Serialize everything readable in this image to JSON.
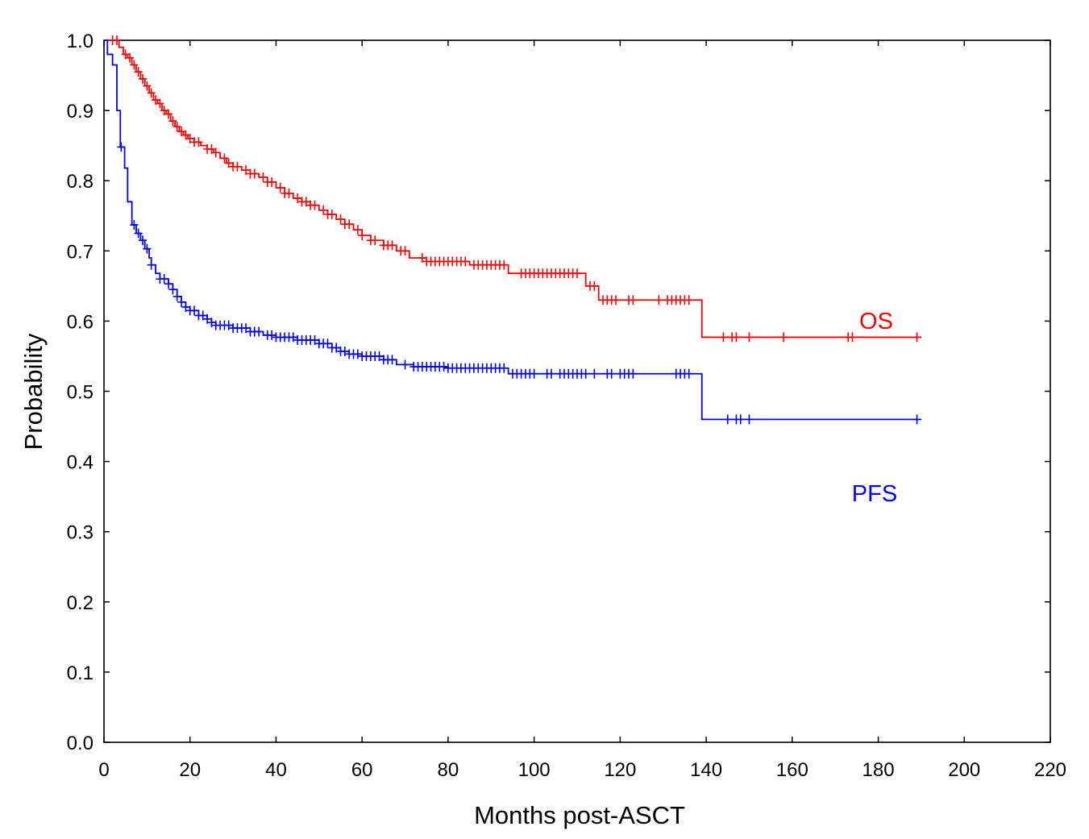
{
  "chart_data": {
    "type": "line",
    "subtype": "kaplan-meier step",
    "title": "",
    "xlabel": "Months post-ASCT",
    "ylabel": "Probability",
    "xlim": [
      0,
      220
    ],
    "ylim": [
      0,
      1.0
    ],
    "x_ticks": [
      0,
      20,
      40,
      60,
      80,
      100,
      120,
      140,
      160,
      180,
      200,
      220
    ],
    "y_ticks": [
      0.0,
      0.1,
      0.2,
      0.3,
      0.4,
      0.5,
      0.6,
      0.7,
      0.8,
      0.9,
      1.0
    ],
    "x_tick_labels": [
      "0",
      "20",
      "40",
      "60",
      "80",
      "100",
      "120",
      "140",
      "160",
      "180",
      "200",
      "220"
    ],
    "y_tick_labels": [
      "0.0",
      "0.1",
      "0.2",
      "0.3",
      "0.4",
      "0.5",
      "0.6",
      "0.7",
      "0.8",
      "0.9",
      "1.0"
    ],
    "grid": false,
    "series": [
      {
        "name": "OS",
        "color": "#ff0000",
        "points": [
          [
            0,
            1.0
          ],
          [
            3.5,
            0.99
          ],
          [
            4.5,
            0.98
          ],
          [
            5.5,
            0.975
          ],
          [
            6.5,
            0.965
          ],
          [
            7.5,
            0.955
          ],
          [
            8.5,
            0.945
          ],
          [
            9.5,
            0.935
          ],
          [
            10.5,
            0.925
          ],
          [
            11.5,
            0.915
          ],
          [
            12.5,
            0.91
          ],
          [
            13.5,
            0.9
          ],
          [
            14.5,
            0.895
          ],
          [
            15.5,
            0.885
          ],
          [
            16.5,
            0.877
          ],
          [
            17.5,
            0.87
          ],
          [
            18.5,
            0.865
          ],
          [
            19.5,
            0.86
          ],
          [
            21,
            0.855
          ],
          [
            22.5,
            0.85
          ],
          [
            24,
            0.845
          ],
          [
            25.5,
            0.84
          ],
          [
            27,
            0.832
          ],
          [
            28.5,
            0.825
          ],
          [
            30,
            0.82
          ],
          [
            32,
            0.815
          ],
          [
            34,
            0.81
          ],
          [
            36,
            0.805
          ],
          [
            38,
            0.798
          ],
          [
            40,
            0.79
          ],
          [
            42,
            0.782
          ],
          [
            44,
            0.775
          ],
          [
            46,
            0.77
          ],
          [
            48,
            0.765
          ],
          [
            50,
            0.758
          ],
          [
            52,
            0.752
          ],
          [
            54,
            0.745
          ],
          [
            56,
            0.738
          ],
          [
            58,
            0.73
          ],
          [
            60,
            0.722
          ],
          [
            62,
            0.715
          ],
          [
            65,
            0.708
          ],
          [
            68,
            0.7
          ],
          [
            71,
            0.69
          ],
          [
            75,
            0.685
          ],
          [
            85,
            0.68
          ],
          [
            94,
            0.668
          ],
          [
            112,
            0.65
          ],
          [
            115,
            0.63
          ],
          [
            139,
            0.577
          ],
          [
            190,
            0.577
          ]
        ],
        "censor_x": [
          2,
          3,
          5,
          6,
          7,
          8,
          9,
          10,
          11,
          12,
          13,
          14,
          15,
          16,
          17,
          18,
          19,
          20,
          21,
          22,
          24,
          25,
          26,
          28,
          29,
          30,
          31,
          33,
          34,
          35,
          37,
          38,
          39,
          41,
          42,
          43,
          45,
          46,
          47,
          48,
          49,
          51,
          52,
          53,
          55,
          56,
          57,
          59,
          60,
          62,
          63,
          65,
          66,
          67,
          69,
          70,
          74,
          75,
          76,
          77,
          78,
          79,
          80,
          81,
          82,
          83,
          84,
          86,
          87,
          88,
          89,
          90,
          91,
          92,
          93,
          97,
          98,
          99,
          100,
          101,
          102,
          103,
          104,
          105,
          106,
          107,
          108,
          109,
          110,
          113,
          114,
          116,
          117,
          118,
          119,
          122,
          123,
          129,
          131,
          132,
          133,
          134,
          135,
          136,
          144,
          146,
          147,
          150,
          158,
          173,
          174,
          189
        ],
        "label": "OS"
      },
      {
        "name": "PFS",
        "color": "#0000ff",
        "points": [
          [
            0,
            1.0
          ],
          [
            0.8,
            0.98
          ],
          [
            2,
            0.965
          ],
          [
            3,
            0.9
          ],
          [
            3.8,
            0.848
          ],
          [
            4.8,
            0.818
          ],
          [
            5.5,
            0.77
          ],
          [
            6.5,
            0.737
          ],
          [
            7.5,
            0.725
          ],
          [
            8.5,
            0.715
          ],
          [
            9.5,
            0.703
          ],
          [
            10.5,
            0.69
          ],
          [
            11,
            0.68
          ],
          [
            12,
            0.668
          ],
          [
            13,
            0.66
          ],
          [
            15,
            0.653
          ],
          [
            16,
            0.645
          ],
          [
            17,
            0.635
          ],
          [
            18,
            0.627
          ],
          [
            19,
            0.62
          ],
          [
            20,
            0.615
          ],
          [
            22,
            0.608
          ],
          [
            24,
            0.603
          ],
          [
            25,
            0.598
          ],
          [
            26,
            0.594
          ],
          [
            30,
            0.59
          ],
          [
            34,
            0.585
          ],
          [
            37,
            0.58
          ],
          [
            40,
            0.577
          ],
          [
            45,
            0.573
          ],
          [
            50,
            0.568
          ],
          [
            53,
            0.562
          ],
          [
            55,
            0.557
          ],
          [
            57,
            0.553
          ],
          [
            60,
            0.55
          ],
          [
            65,
            0.545
          ],
          [
            68,
            0.538
          ],
          [
            72,
            0.535
          ],
          [
            80,
            0.533
          ],
          [
            94,
            0.525
          ],
          [
            139,
            0.46
          ],
          [
            190,
            0.46
          ]
        ],
        "censor_x": [
          4,
          7,
          8,
          9,
          10,
          11,
          13,
          14,
          15,
          16,
          17,
          18,
          19,
          20,
          21,
          22,
          23,
          24,
          25,
          26,
          27,
          28,
          29,
          30,
          31,
          32,
          33,
          34,
          35,
          36,
          38,
          39,
          40,
          41,
          42,
          43,
          44,
          45,
          46,
          47,
          48,
          49,
          50,
          51,
          52,
          53,
          54,
          55,
          56,
          57,
          58,
          59,
          60,
          61,
          62,
          63,
          64,
          65,
          66,
          67,
          70,
          72,
          73,
          74,
          75,
          76,
          77,
          78,
          79,
          80,
          81,
          82,
          83,
          84,
          85,
          86,
          87,
          88,
          89,
          90,
          91,
          92,
          93,
          95,
          96,
          97,
          98,
          99,
          100,
          103,
          104,
          106,
          107,
          108,
          109,
          110,
          111,
          112,
          114,
          117,
          118,
          120,
          121,
          122,
          123,
          133,
          134,
          135,
          136,
          145,
          147,
          148,
          150,
          189
        ],
        "label": "PFS"
      }
    ]
  }
}
